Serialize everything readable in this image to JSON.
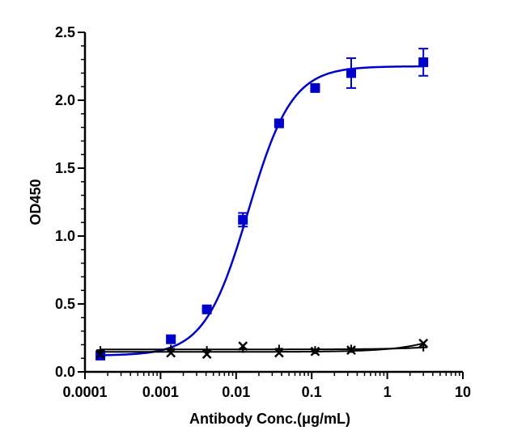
{
  "chart_data": {
    "type": "scatter",
    "title": "",
    "xlabel": "Antibody Conc.(μg/mL)",
    "ylabel": "OD450",
    "xscale": "log",
    "xlim": [
      0.0001,
      10
    ],
    "ylim": [
      0,
      2.5
    ],
    "x_tick_labels": [
      "0.0001",
      "0.001",
      "0.01",
      "0.1",
      "1",
      "10"
    ],
    "y_tick_labels": [
      "0.0",
      "0.5",
      "1.0",
      "1.5",
      "2.0",
      "2.5"
    ],
    "grid": false,
    "legend": "none",
    "series": [
      {
        "marker": "square",
        "color": "#0000cc",
        "x": [
          0.00016,
          0.00137,
          0.0041,
          0.0123,
          0.037,
          0.111,
          0.333,
          3.0
        ],
        "y": [
          0.12,
          0.24,
          0.46,
          1.12,
          1.83,
          2.09,
          2.2,
          2.28
        ],
        "yerr": [
          0.01,
          0.02,
          0.01,
          0.05,
          0.01,
          0.02,
          0.11,
          0.1
        ],
        "fit": {
          "model": "4PL",
          "bottom": 0.12,
          "top": 2.25,
          "ec50": 0.0145,
          "hill": 1.5
        }
      },
      {
        "marker": "x",
        "color": "#000000",
        "x": [
          0.00016,
          0.00137,
          0.0041,
          0.0123,
          0.037,
          0.111,
          0.333,
          3.0
        ],
        "y": [
          0.13,
          0.14,
          0.13,
          0.19,
          0.14,
          0.15,
          0.16,
          0.21
        ],
        "fit": {
          "model": "linear"
        }
      },
      {
        "marker": "plus",
        "color": "#000000",
        "x": [
          0.00016,
          0.00137,
          0.0041,
          0.0123,
          0.037,
          0.111,
          0.333,
          3.0
        ],
        "y": [
          0.16,
          0.17,
          0.16,
          0.17,
          0.17,
          0.16,
          0.17,
          0.18
        ],
        "fit": {
          "model": "linear"
        }
      }
    ]
  }
}
